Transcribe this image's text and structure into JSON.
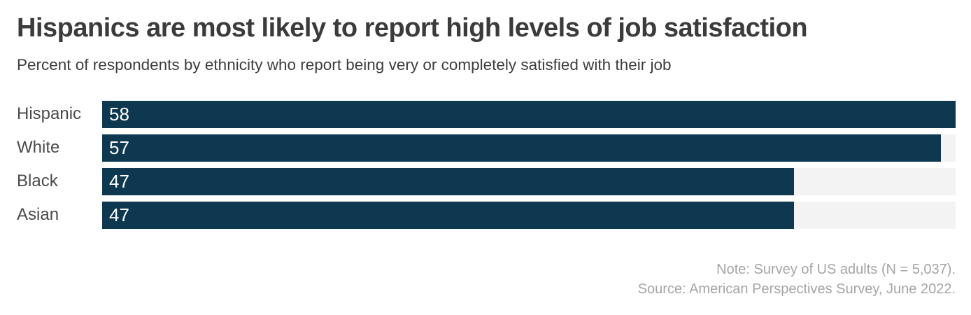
{
  "header": {
    "title": "Hispanics are most likely to report high levels of job satisfaction",
    "subtitle": "Percent of respondents by ethnicity who report being very or completely satisfied with their job"
  },
  "chart_data": {
    "type": "bar",
    "orientation": "horizontal",
    "title": "Hispanics are most likely to report high levels of job satisfaction",
    "subtitle": "Percent of respondents by ethnicity who report being very or completely satisfied with their job",
    "categories": [
      "Hispanic",
      "White",
      "Black",
      "Asian"
    ],
    "values": [
      58,
      57,
      47,
      47
    ],
    "value_labels": [
      "58",
      "57",
      "47",
      "47"
    ],
    "unit": "percent",
    "xlim": [
      0,
      58
    ],
    "grid": false,
    "legend": false,
    "bar_color": "#0d384f",
    "track_color": "#f3f3f3",
    "value_label_color": "#ffffff",
    "category_label_color": "#4a4a4a"
  },
  "footer": {
    "note": "Note: Survey of US adults (N = 5,037).",
    "source": "Source: American Perspectives Survey, June 2022."
  }
}
